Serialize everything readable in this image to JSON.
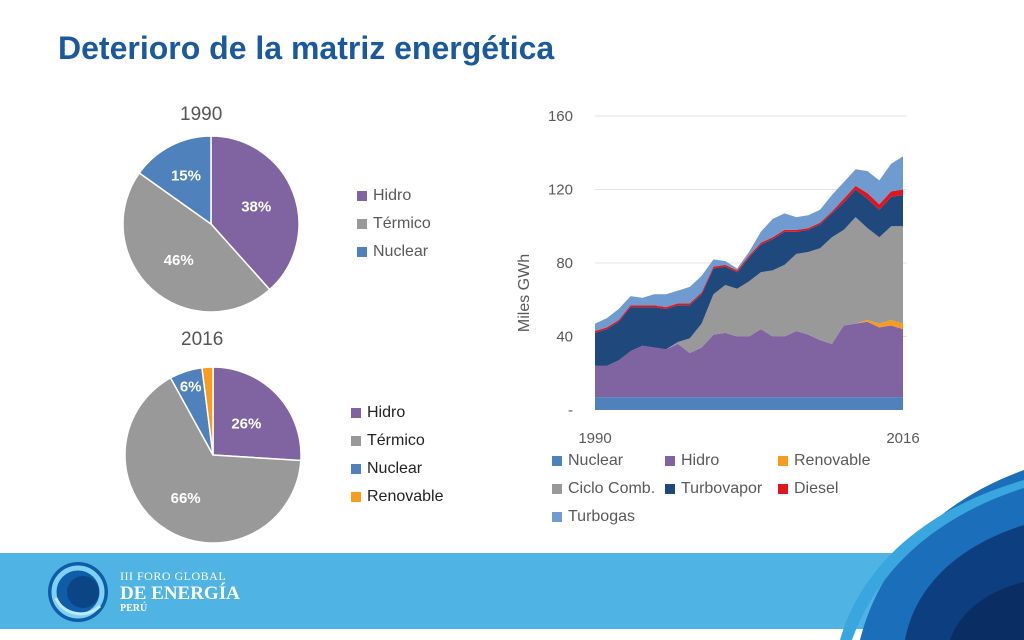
{
  "title": "Deterioro de la matriz energética",
  "pie_charts": [
    {
      "title": "1990",
      "slices": [
        {
          "name": "Hidro",
          "value": 38,
          "label": "38%",
          "color": "#8064a2"
        },
        {
          "name": "Térmico",
          "value": 46,
          "label": "46%",
          "color": "#999999"
        },
        {
          "name": "Nuclear",
          "value": 15,
          "label": "15%",
          "color": "#4f81bd"
        }
      ]
    },
    {
      "title": "2016",
      "slices": [
        {
          "name": "Hidro",
          "value": 26,
          "label": "26%",
          "color": "#8064a2"
        },
        {
          "name": "Térmico",
          "value": 66,
          "label": "66%",
          "color": "#999999"
        },
        {
          "name": "Nuclear",
          "value": 6,
          "label": "6%",
          "color": "#4f81bd"
        },
        {
          "name": "Renovable",
          "value": 2,
          "label": "",
          "color": "#f79c1c"
        }
      ]
    }
  ],
  "chart_data": [
    {
      "type": "pie",
      "title": "1990",
      "categories": [
        "Hidro",
        "Térmico",
        "Nuclear"
      ],
      "values": [
        38,
        46,
        15
      ],
      "legend": "right"
    },
    {
      "type": "pie",
      "title": "2016",
      "categories": [
        "Hidro",
        "Térmico",
        "Nuclear",
        "Renovable"
      ],
      "values": [
        26,
        66,
        6,
        2
      ],
      "legend": "right"
    },
    {
      "type": "area",
      "stacked": true,
      "ylabel": "Miles GWh",
      "ylim": [
        0,
        160
      ],
      "yticks": [
        0,
        40,
        80,
        120,
        160
      ],
      "ytick_labels": [
        "-",
        "40",
        "80",
        "120",
        "160"
      ],
      "xtick_labels": [
        "1990",
        "2016"
      ],
      "legend": "bottom",
      "x": [
        1990,
        1991,
        1992,
        1993,
        1994,
        1995,
        1996,
        1997,
        1998,
        1999,
        2000,
        2001,
        2002,
        2003,
        2004,
        2005,
        2006,
        2007,
        2008,
        2009,
        2010,
        2011,
        2012,
        2013,
        2014,
        2015,
        2016
      ],
      "series": [
        {
          "name": "Nuclear",
          "color": "#4f81bd",
          "values": [
            7,
            7,
            7,
            7,
            7,
            7,
            7,
            7,
            7,
            7,
            7,
            7,
            7,
            7,
            7,
            7,
            7,
            7,
            7,
            7,
            7,
            7,
            7,
            7,
            7,
            7,
            7
          ]
        },
        {
          "name": "Hidro",
          "color": "#8064a2",
          "values": [
            17,
            17,
            20,
            25,
            28,
            27,
            26,
            29,
            24,
            27,
            34,
            35,
            33,
            33,
            37,
            33,
            33,
            36,
            34,
            31,
            29,
            39,
            40,
            41,
            38,
            39,
            37
          ]
        },
        {
          "name": "Renovable",
          "color": "#f79c1c",
          "values": [
            0,
            0,
            0,
            0,
            0,
            0,
            0,
            0,
            0,
            0,
            0,
            0,
            0,
            0,
            0,
            0,
            0,
            0,
            0,
            0,
            0,
            0,
            0,
            1,
            2,
            3,
            3
          ]
        },
        {
          "name": "Ciclo Comb.",
          "color": "#999999",
          "values": [
            0,
            0,
            0,
            0,
            0,
            0,
            0,
            1,
            8,
            13,
            22,
            26,
            26,
            30,
            31,
            36,
            39,
            42,
            45,
            50,
            58,
            52,
            58,
            50,
            47,
            51,
            53
          ]
        },
        {
          "name": "Turbovapor",
          "color": "#1f497d",
          "values": [
            18,
            20,
            21,
            24,
            21,
            22,
            22,
            20,
            18,
            16,
            14,
            10,
            9,
            13,
            15,
            17,
            18,
            12,
            12,
            13,
            13,
            15,
            15,
            16,
            15,
            16,
            17
          ]
        },
        {
          "name": "Diesel",
          "color": "#e0161c",
          "values": [
            1,
            1,
            1,
            1,
            1,
            1,
            1,
            1,
            1,
            1,
            1,
            1,
            1,
            1,
            1,
            1,
            1,
            1,
            1,
            1,
            1,
            2,
            2,
            3,
            3,
            3,
            3
          ]
        },
        {
          "name": "Turbogas",
          "color": "#6f9bd1",
          "values": [
            4,
            5,
            6,
            5,
            4,
            6,
            7,
            7,
            9,
            9,
            4,
            2,
            1,
            2,
            6,
            10,
            9,
            7,
            7,
            7,
            9,
            9,
            9,
            12,
            13,
            15,
            18
          ]
        }
      ]
    }
  ],
  "legends": {
    "pie1990": [
      {
        "label": "Hidro",
        "color": "#8064a2"
      },
      {
        "label": "Térmico",
        "color": "#999999"
      },
      {
        "label": "Nuclear",
        "color": "#4f81bd"
      }
    ],
    "pie2016": [
      {
        "label": "Hidro",
        "color": "#8064a2"
      },
      {
        "label": "Térmico",
        "color": "#999999"
      },
      {
        "label": "Nuclear",
        "color": "#4f81bd"
      },
      {
        "label": "Renovable",
        "color": "#f79c1c"
      }
    ],
    "area": [
      {
        "label": "Nuclear",
        "color": "#4f81bd"
      },
      {
        "label": "Hidro",
        "color": "#8064a2"
      },
      {
        "label": "Renovable",
        "color": "#f79c1c"
      },
      {
        "label": "Ciclo Comb.",
        "color": "#999999"
      },
      {
        "label": "Turbovapor",
        "color": "#1f497d"
      },
      {
        "label": "Diesel",
        "color": "#e0161c"
      },
      {
        "label": "Turbogas",
        "color": "#6f9bd1"
      }
    ]
  },
  "footer": {
    "line1": "III FORO GLOBAL",
    "line2": "DE ENERGÍA",
    "line3": "PERÚ",
    "bar_color": "#4fb3e3"
  }
}
